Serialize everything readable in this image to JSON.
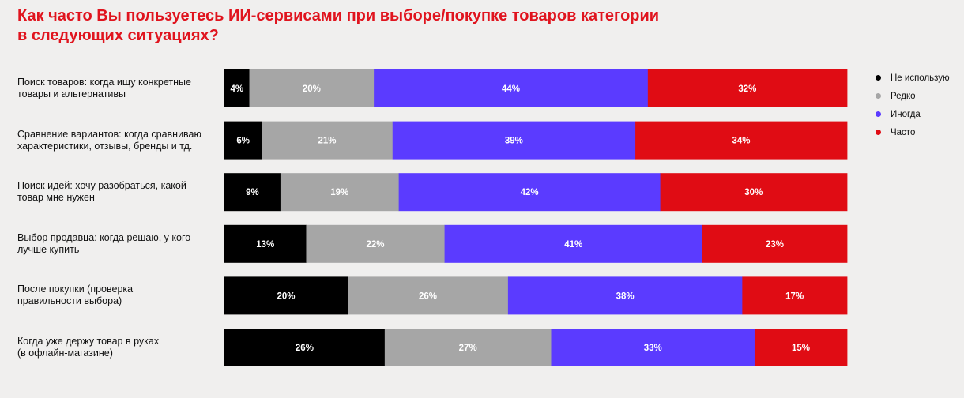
{
  "chart_data": {
    "type": "bar",
    "orientation": "horizontal",
    "stacked": true,
    "title_lines": [
      "Как часто Вы пользуетесь ИИ-сервисами при выборе/покупке товаров категории",
      "в следующих ситуациях?"
    ],
    "categories": [
      [
        "Поиск товаров: когда ищу конкретные",
        "товары и альтернативы"
      ],
      [
        "Сравнение вариантов: когда сравниваю",
        "характеристики, отзывы, бренды и тд."
      ],
      [
        "Поиск идей: хочу разобраться, какой",
        "товар мне нужен"
      ],
      [
        "Выбор продавца: когда решаю, у кого",
        "лучше купить"
      ],
      [
        "После покупки (проверка",
        "правильности выбора)"
      ],
      [
        "Когда уже держу товар в руках",
        "(в офлайн-магазине)"
      ]
    ],
    "series": [
      {
        "name": "Не использую",
        "color": "#000000",
        "values": [
          4,
          6,
          9,
          13,
          20,
          26
        ]
      },
      {
        "name": "Редко",
        "color": "#a6a6a6",
        "values": [
          20,
          21,
          19,
          22,
          26,
          27
        ]
      },
      {
        "name": "Иногда",
        "color": "#5b3bff",
        "values": [
          44,
          39,
          42,
          41,
          38,
          33
        ]
      },
      {
        "name": "Часто",
        "color": "#e00c14",
        "values": [
          32,
          34,
          30,
          23,
          17,
          15
        ]
      }
    ],
    "value_suffix": "%",
    "legend_position": "right",
    "grid": false
  }
}
